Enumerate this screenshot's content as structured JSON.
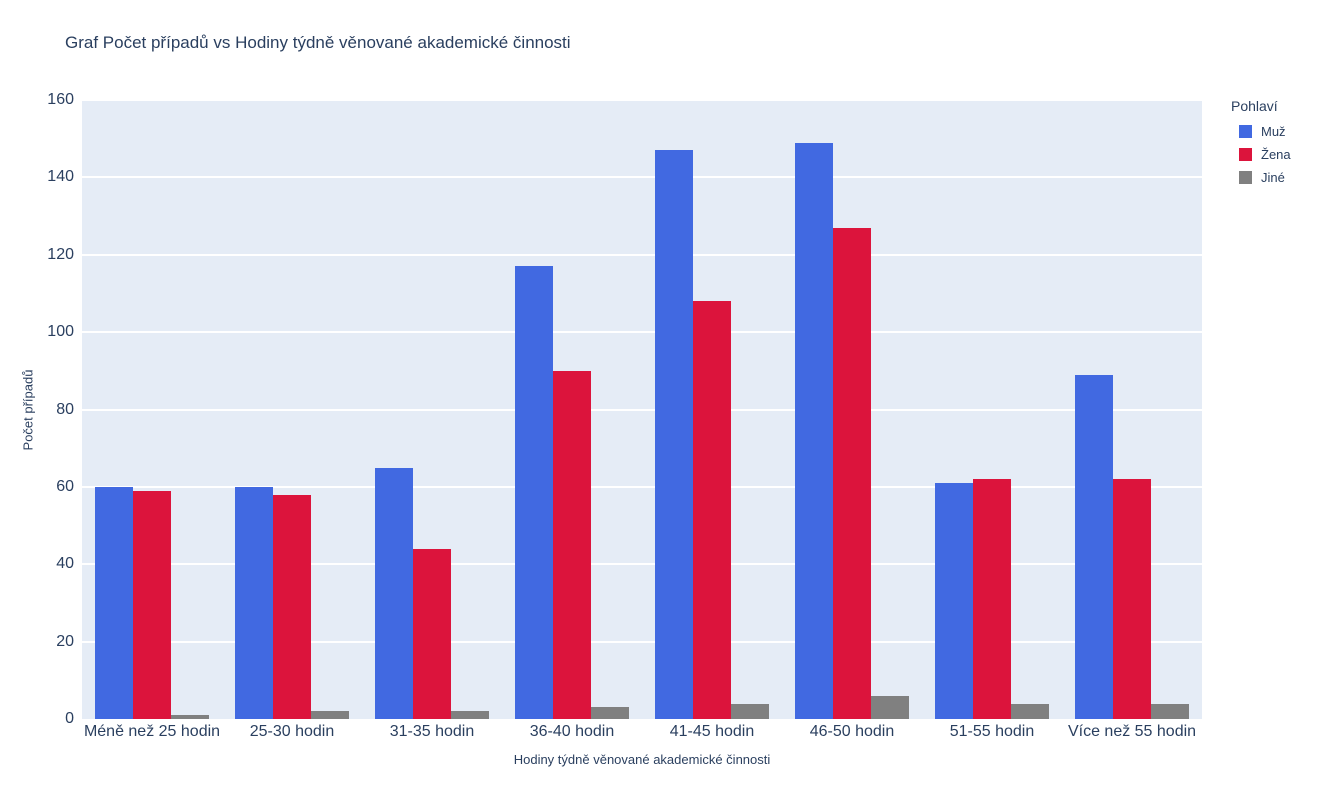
{
  "chart_data": {
    "type": "bar",
    "mode": "grouped",
    "title": "Graf Počet případů vs Hodiny týdně věnované akademické činnosti",
    "xlabel": "Hodiny týdně věnované akademické činnosti",
    "ylabel": "Počet případů",
    "categories": [
      "Méně než 25 hodin",
      "25-30 hodin",
      "31-35 hodin",
      "36-40 hodin",
      "41-45 hodin",
      "46-50 hodin",
      "51-55 hodin",
      "Více než 55 hodin"
    ],
    "series": [
      {
        "name": "Muž",
        "color": "#4169E1",
        "values": [
          60,
          60,
          65,
          117,
          147,
          149,
          61,
          89
        ]
      },
      {
        "name": "Žena",
        "color": "#DC143C",
        "values": [
          59,
          58,
          44,
          90,
          108,
          127,
          62,
          62
        ]
      },
      {
        "name": "Jiné",
        "color": "#808080",
        "values": [
          1,
          2,
          2,
          3,
          4,
          6,
          4,
          4
        ]
      }
    ],
    "ylim": [
      0,
      160
    ],
    "yticks": [
      0,
      20,
      40,
      60,
      80,
      100,
      120,
      140,
      160
    ],
    "grid": true,
    "legend_title": "Pohlaví",
    "legend_position": "right-top",
    "plot_bgcolor": "#E5ECF6",
    "grid_color": "#FFFFFF",
    "text_color": "#2a3f5f"
  }
}
